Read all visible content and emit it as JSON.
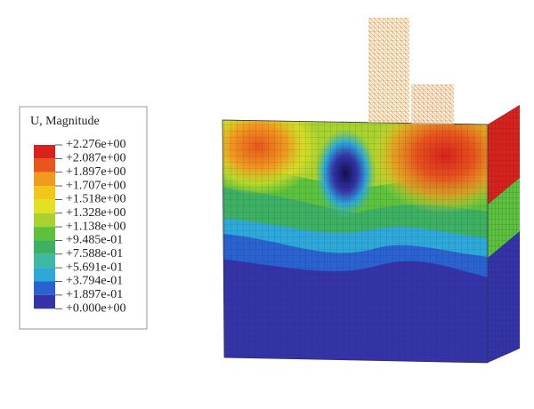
{
  "legend": {
    "title": "U, Magnitude",
    "labels": [
      "+2.276e+00",
      "+2.087e+00",
      "+1.897e+00",
      "+1.707e+00",
      "+1.518e+00",
      "+1.328e+00",
      "+1.138e+00",
      "+9.485e-01",
      "+7.588e-01",
      "+5.691e-01",
      "+3.794e-01",
      "+1.897e-01",
      "+0.000e+00"
    ],
    "colors": [
      "#d8221c",
      "#e8561c",
      "#f09a1e",
      "#f2c61a",
      "#e2e222",
      "#a8d22e",
      "#5cc23e",
      "#3eb062",
      "#3eb8a2",
      "#2ea8d8",
      "#2a62d0",
      "#3434a8"
    ]
  }
}
